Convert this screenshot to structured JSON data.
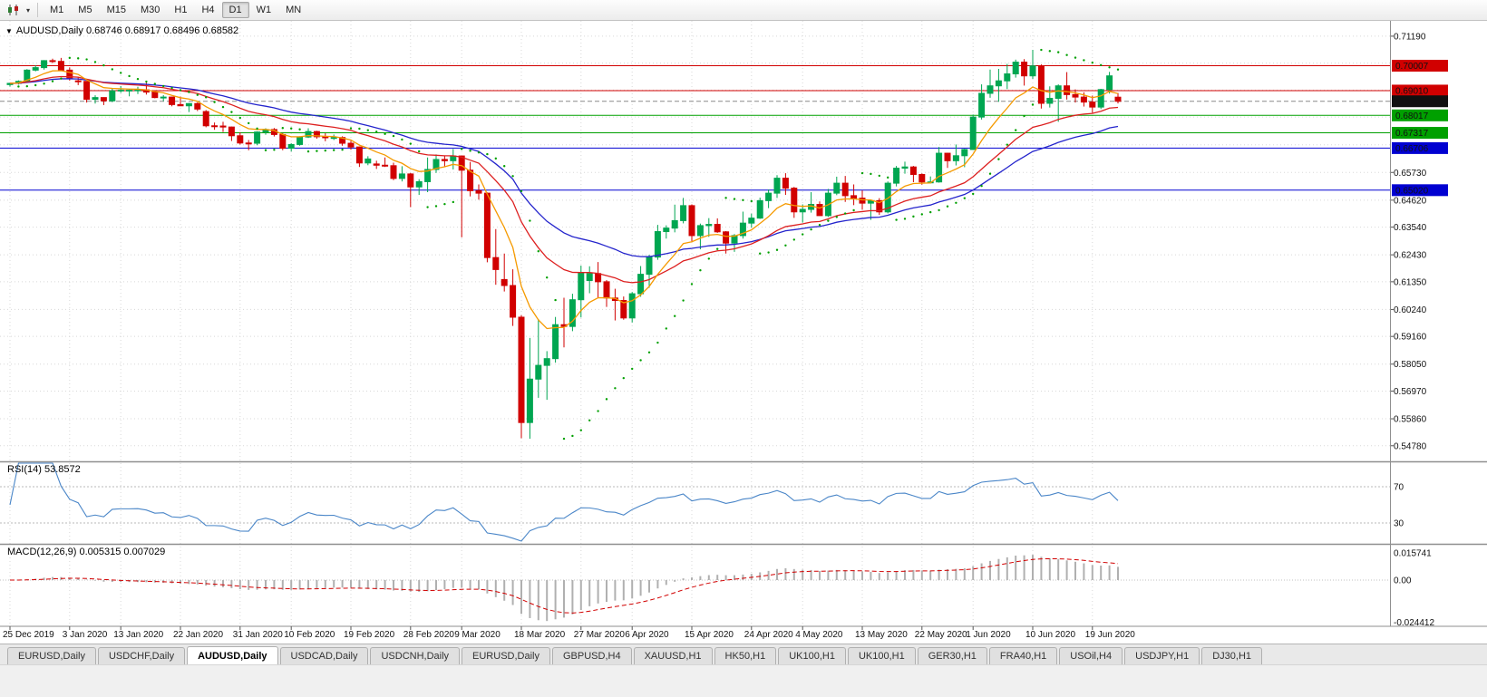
{
  "icons": {
    "chart_menu": "▼"
  },
  "toolbar": {
    "timeframes": [
      "M1",
      "M5",
      "M15",
      "M30",
      "H1",
      "H4",
      "D1",
      "W1",
      "MN"
    ],
    "active": "D1"
  },
  "chart": {
    "symbol": "AUDUSD,Daily",
    "ohlc_text": "0.68746 0.68917 0.68496 0.68582",
    "price_grid": [
      {
        "v": 0.7119,
        "label": "0.71190"
      },
      {
        "v": 0.7011,
        "label": ""
      },
      {
        "v": 0.6903,
        "label": ""
      },
      {
        "v": 0.6795,
        "label": ""
      },
      {
        "v": 0.6684,
        "label": ""
      },
      {
        "v": 0.6573,
        "label": "0.65730"
      },
      {
        "v": 0.6462,
        "label": "0.64620"
      },
      {
        "v": 0.6354,
        "label": "0.63540"
      },
      {
        "v": 0.6243,
        "label": "0.62430"
      },
      {
        "v": 0.6135,
        "label": "0.61350"
      },
      {
        "v": 0.6024,
        "label": "0.60240"
      },
      {
        "v": 0.5916,
        "label": "0.59160"
      },
      {
        "v": 0.5805,
        "label": "0.58050"
      },
      {
        "v": 0.5697,
        "label": "0.56970"
      },
      {
        "v": 0.5586,
        "label": "0.55860"
      },
      {
        "v": 0.5478,
        "label": "0.54780"
      }
    ],
    "hlines": [
      {
        "v": 0.70007,
        "label": "0.70007",
        "color": "#d10000",
        "dashed": false
      },
      {
        "v": 0.6901,
        "label": "0.69010",
        "color": "#d10000",
        "dashed": false
      },
      {
        "v": 0.68582,
        "label": "0.68582",
        "color": "#8a8a8a",
        "bg": "#101010",
        "dashed": true
      },
      {
        "v": 0.68017,
        "label": "0.68017",
        "color": "#00a000",
        "dashed": false
      },
      {
        "v": 0.67317,
        "label": "0.67317",
        "color": "#00a000",
        "dashed": false
      },
      {
        "v": 0.66706,
        "label": "0.66706",
        "color": "#0000d1",
        "dashed": false
      },
      {
        "v": 0.6502,
        "label": "0.65020",
        "color": "#0000d1",
        "dashed": false
      }
    ],
    "ma": [
      {
        "period": 34,
        "color": "#2424cc"
      },
      {
        "period": 21,
        "color": "#dd2020"
      },
      {
        "period": 8,
        "color": "#f59a00"
      }
    ],
    "colors": {
      "up": "#00a651",
      "down": "#d10000",
      "sar": "#00a000",
      "grid": "#d8d8d8",
      "separator": "#8f8f8f"
    }
  },
  "chart_data": {
    "type": "candlestick",
    "title": "AUDUSD, Daily",
    "symbol": "AUDUSD",
    "timeframe": "Daily",
    "y_range": [
      0.543,
      0.7155
    ],
    "current_bar": {
      "open": 0.68746,
      "high": 0.68917,
      "low": 0.68496,
      "close": 0.68582
    },
    "x_ticks": [
      {
        "t": "25 Dec 2019",
        "i": 0
      },
      {
        "t": "3 Jan 2020",
        "i": 7
      },
      {
        "t": "13 Jan 2020",
        "i": 13
      },
      {
        "t": "22 Jan 2020",
        "i": 20
      },
      {
        "t": "31 Jan 2020",
        "i": 27
      },
      {
        "t": "10 Feb 2020",
        "i": 33
      },
      {
        "t": "19 Feb 2020",
        "i": 40
      },
      {
        "t": "28 Feb 2020",
        "i": 47
      },
      {
        "t": "9 Mar 2020",
        "i": 53
      },
      {
        "t": "18 Mar 2020",
        "i": 60
      },
      {
        "t": "27 Mar 2020",
        "i": 67
      },
      {
        "t": "6 Apr 2020",
        "i": 73
      },
      {
        "t": "15 Apr 2020",
        "i": 80
      },
      {
        "t": "24 Apr 2020",
        "i": 87
      },
      {
        "t": "4 May 2020",
        "i": 93
      },
      {
        "t": "13 May 2020",
        "i": 100
      },
      {
        "t": "22 May 2020",
        "i": 107
      },
      {
        "t": "1 Jun 2020",
        "i": 113
      },
      {
        "t": "10 Jun 2020",
        "i": 120
      },
      {
        "t": "19 Jun 2020",
        "i": 127
      }
    ],
    "ohlc": [
      [
        0.6925,
        0.6932,
        0.6917,
        0.693
      ],
      [
        0.693,
        0.6942,
        0.6925,
        0.6938
      ],
      [
        0.6938,
        0.6987,
        0.6936,
        0.6983
      ],
      [
        0.6983,
        0.7003,
        0.6978,
        0.6993
      ],
      [
        0.6993,
        0.7023,
        0.6985,
        0.7021
      ],
      [
        0.7021,
        0.7029,
        0.7011,
        0.7018
      ],
      [
        0.7018,
        0.7032,
        0.698,
        0.6983
      ],
      [
        0.6983,
        0.6994,
        0.6941,
        0.695
      ],
      [
        0.694,
        0.6954,
        0.6923,
        0.6938
      ],
      [
        0.6938,
        0.6939,
        0.6853,
        0.6866
      ],
      [
        0.6866,
        0.6882,
        0.6849,
        0.6873
      ],
      [
        0.6873,
        0.6874,
        0.6843,
        0.686
      ],
      [
        0.686,
        0.6911,
        0.6855,
        0.69
      ],
      [
        0.69,
        0.6919,
        0.6892,
        0.6903
      ],
      [
        0.6903,
        0.6908,
        0.6878,
        0.6903
      ],
      [
        0.6903,
        0.6916,
        0.6887,
        0.6904
      ],
      [
        0.6904,
        0.6933,
        0.6885,
        0.6895
      ],
      [
        0.6895,
        0.6899,
        0.687,
        0.6873
      ],
      [
        0.6873,
        0.6883,
        0.6859,
        0.6875
      ],
      [
        0.6875,
        0.6877,
        0.6838,
        0.6845
      ],
      [
        0.6845,
        0.6877,
        0.684,
        0.684
      ],
      [
        0.684,
        0.6851,
        0.6815,
        0.6849
      ],
      [
        0.6849,
        0.6854,
        0.6819,
        0.6827
      ],
      [
        0.6817,
        0.6823,
        0.6754,
        0.676
      ],
      [
        0.676,
        0.6773,
        0.6744,
        0.6759
      ],
      [
        0.6759,
        0.6776,
        0.6735,
        0.6755
      ],
      [
        0.6755,
        0.6757,
        0.6699,
        0.672
      ],
      [
        0.672,
        0.6734,
        0.6685,
        0.6691
      ],
      [
        0.6691,
        0.6703,
        0.6662,
        0.669
      ],
      [
        0.669,
        0.6738,
        0.6682,
        0.6735
      ],
      [
        0.6735,
        0.675,
        0.6724,
        0.6745
      ],
      [
        0.6745,
        0.6751,
        0.6717,
        0.6725
      ],
      [
        0.6725,
        0.6731,
        0.6662,
        0.667
      ],
      [
        0.667,
        0.669,
        0.6657,
        0.6685
      ],
      [
        0.6685,
        0.6718,
        0.668,
        0.6715
      ],
      [
        0.6715,
        0.675,
        0.6711,
        0.6737
      ],
      [
        0.6737,
        0.674,
        0.6708,
        0.6716
      ],
      [
        0.6716,
        0.673,
        0.6698,
        0.6712
      ],
      [
        0.6712,
        0.6725,
        0.6703,
        0.6713
      ],
      [
        0.6713,
        0.6718,
        0.668,
        0.669
      ],
      [
        0.669,
        0.67,
        0.6664,
        0.6675
      ],
      [
        0.6675,
        0.6677,
        0.6595,
        0.6611
      ],
      [
        0.6611,
        0.6638,
        0.6602,
        0.6627
      ],
      [
        0.6607,
        0.662,
        0.6587,
        0.6602
      ],
      [
        0.6602,
        0.6633,
        0.6595,
        0.66
      ],
      [
        0.66,
        0.6612,
        0.6542,
        0.6549
      ],
      [
        0.6549,
        0.6598,
        0.6537,
        0.6567
      ],
      [
        0.6567,
        0.6571,
        0.6434,
        0.6515
      ],
      [
        0.6515,
        0.6546,
        0.6483,
        0.6536
      ],
      [
        0.6536,
        0.6633,
        0.6494,
        0.6585
      ],
      [
        0.6585,
        0.6645,
        0.6571,
        0.6625
      ],
      [
        0.6625,
        0.6639,
        0.6596,
        0.662
      ],
      [
        0.662,
        0.6667,
        0.6585,
        0.6639
      ],
      [
        0.6639,
        0.6639,
        0.6313,
        0.6582
      ],
      [
        0.6582,
        0.6615,
        0.6477,
        0.65
      ],
      [
        0.65,
        0.6525,
        0.6464,
        0.649
      ],
      [
        0.649,
        0.6493,
        0.6213,
        0.6232
      ],
      [
        0.6232,
        0.6346,
        0.6123,
        0.6184
      ],
      [
        0.6144,
        0.6248,
        0.6096,
        0.612
      ],
      [
        0.612,
        0.6185,
        0.5958,
        0.5993
      ],
      [
        0.5993,
        0.6001,
        0.5508,
        0.5571
      ],
      [
        0.5571,
        0.591,
        0.5506,
        0.5745
      ],
      [
        0.5745,
        0.5985,
        0.567,
        0.58
      ],
      [
        0.58,
        0.5857,
        0.5662,
        0.5827
      ],
      [
        0.5827,
        0.5994,
        0.5811,
        0.5963
      ],
      [
        0.5963,
        0.6071,
        0.5872,
        0.5956
      ],
      [
        0.5956,
        0.6087,
        0.5937,
        0.6063
      ],
      [
        0.6063,
        0.62,
        0.5992,
        0.617
      ],
      [
        0.614,
        0.6197,
        0.6089,
        0.6168
      ],
      [
        0.6168,
        0.6214,
        0.6072,
        0.6135
      ],
      [
        0.6135,
        0.6142,
        0.6034,
        0.607
      ],
      [
        0.607,
        0.6107,
        0.598,
        0.606
      ],
      [
        0.606,
        0.6076,
        0.5983,
        0.599
      ],
      [
        0.599,
        0.6094,
        0.5972,
        0.6087
      ],
      [
        0.6087,
        0.6198,
        0.6075,
        0.6165
      ],
      [
        0.6165,
        0.6243,
        0.6111,
        0.6234
      ],
      [
        0.6234,
        0.6363,
        0.6223,
        0.6336
      ],
      [
        0.6336,
        0.6361,
        0.6308,
        0.635
      ],
      [
        0.635,
        0.6444,
        0.6333,
        0.638
      ],
      [
        0.638,
        0.6471,
        0.6369,
        0.644
      ],
      [
        0.644,
        0.6445,
        0.6297,
        0.632
      ],
      [
        0.632,
        0.6368,
        0.6265,
        0.636
      ],
      [
        0.636,
        0.639,
        0.6315,
        0.6365
      ],
      [
        0.6365,
        0.6389,
        0.6331,
        0.6335
      ],
      [
        0.6335,
        0.6338,
        0.6248,
        0.629
      ],
      [
        0.629,
        0.6326,
        0.6255,
        0.632
      ],
      [
        0.632,
        0.6416,
        0.6308,
        0.637
      ],
      [
        0.637,
        0.6408,
        0.6352,
        0.639
      ],
      [
        0.639,
        0.6472,
        0.6387,
        0.646
      ],
      [
        0.646,
        0.6505,
        0.643,
        0.649
      ],
      [
        0.649,
        0.6562,
        0.6471,
        0.655
      ],
      [
        0.655,
        0.657,
        0.6483,
        0.651
      ],
      [
        0.651,
        0.6515,
        0.6391,
        0.6415
      ],
      [
        0.6415,
        0.6445,
        0.6372,
        0.6425
      ],
      [
        0.6425,
        0.6494,
        0.6412,
        0.6445
      ],
      [
        0.6445,
        0.6457,
        0.6399,
        0.64
      ],
      [
        0.64,
        0.6507,
        0.6395,
        0.649
      ],
      [
        0.649,
        0.6556,
        0.6482,
        0.653
      ],
      [
        0.653,
        0.6559,
        0.6455,
        0.648
      ],
      [
        0.648,
        0.6525,
        0.6442,
        0.647
      ],
      [
        0.647,
        0.6501,
        0.6424,
        0.645
      ],
      [
        0.645,
        0.6464,
        0.6383,
        0.646
      ],
      [
        0.646,
        0.647,
        0.6403,
        0.6415
      ],
      [
        0.6415,
        0.6537,
        0.6409,
        0.653
      ],
      [
        0.653,
        0.6599,
        0.6517,
        0.659
      ],
      [
        0.659,
        0.6616,
        0.6568,
        0.6595
      ],
      [
        0.6595,
        0.6599,
        0.6534,
        0.6565
      ],
      [
        0.6565,
        0.6569,
        0.6524,
        0.6535
      ],
      [
        0.6535,
        0.6557,
        0.6529,
        0.6535
      ],
      [
        0.6535,
        0.6675,
        0.6532,
        0.665
      ],
      [
        0.665,
        0.6652,
        0.6591,
        0.662
      ],
      [
        0.662,
        0.6685,
        0.6601,
        0.664
      ],
      [
        0.664,
        0.6668,
        0.6594,
        0.6665
      ],
      [
        0.6665,
        0.6805,
        0.6663,
        0.6795
      ],
      [
        0.6795,
        0.6926,
        0.6785,
        0.689
      ],
      [
        0.689,
        0.6985,
        0.6872,
        0.692
      ],
      [
        0.692,
        0.6988,
        0.6856,
        0.694
      ],
      [
        0.694,
        0.7008,
        0.6907,
        0.6968
      ],
      [
        0.6968,
        0.7025,
        0.6953,
        0.7015
      ],
      [
        0.7015,
        0.7027,
        0.6921,
        0.696
      ],
      [
        0.696,
        0.7064,
        0.6948,
        0.7
      ],
      [
        0.7,
        0.7006,
        0.6829,
        0.685
      ],
      [
        0.685,
        0.6918,
        0.6833,
        0.687
      ],
      [
        0.687,
        0.6926,
        0.6776,
        0.692
      ],
      [
        0.692,
        0.6975,
        0.6865,
        0.6885
      ],
      [
        0.6885,
        0.6906,
        0.6853,
        0.6875
      ],
      [
        0.6875,
        0.6894,
        0.6837,
        0.6855
      ],
      [
        0.6855,
        0.6881,
        0.6812,
        0.6835
      ],
      [
        0.6835,
        0.6908,
        0.6827,
        0.6905
      ],
      [
        0.6905,
        0.6976,
        0.6889,
        0.696
      ],
      [
        0.68746,
        0.68917,
        0.68496,
        0.68582
      ]
    ]
  },
  "rsi": {
    "header": "RSI(14) 53.8572",
    "period": 14,
    "value": 53.8572,
    "color": "#4a86c8",
    "levels": [
      {
        "v": 70,
        "label": "70"
      },
      {
        "v": 30,
        "label": "30"
      }
    ]
  },
  "macd": {
    "header": "MACD(12,26,9) 0.005315 0.007029",
    "fast": 12,
    "slow": 26,
    "signal": 9,
    "value_main": 0.005315,
    "value_signal": 0.007029,
    "hist_color": "#b0b0b0",
    "signal_color": "#d10000",
    "axis": [
      {
        "v": 0.015741,
        "label": "0.015741"
      },
      {
        "v": 0.0,
        "label": "0.00"
      },
      {
        "v": -0.024412,
        "label": "-0.024412"
      }
    ]
  },
  "tabs": {
    "items": [
      "EURUSD,Daily",
      "USDCHF,Daily",
      "AUDUSD,Daily",
      "USDCAD,Daily",
      "USDCNH,Daily",
      "EURUSD,Daily",
      "GBPUSD,H4",
      "XAUUSD,H1",
      "HK50,H1",
      "UK100,H1",
      "UK100,H1",
      "GER30,H1",
      "FRA40,H1",
      "USOil,H4",
      "USDJPY,H1",
      "DJ30,H1"
    ],
    "active_index": 2
  }
}
